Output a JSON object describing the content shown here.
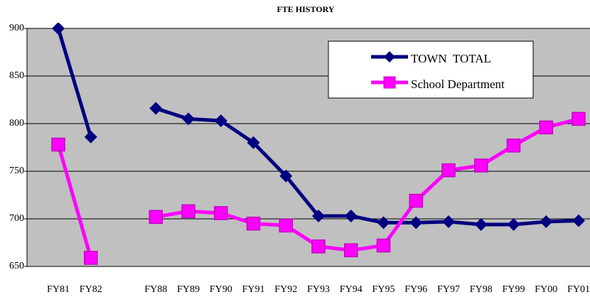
{
  "chart_data": {
    "type": "line",
    "title": "FTE HISTORY",
    "categories": [
      "FY81",
      "FY82",
      null,
      "FY88",
      "FY89",
      "FY90",
      "FY91",
      "FY92",
      "FY93",
      "FY94",
      "FY95",
      "FY96",
      "FY97",
      "FY98",
      "FY99",
      "FY00",
      "FY01"
    ],
    "series": [
      {
        "name": "TOWN  TOTAL",
        "color": "#000080",
        "marker": "diamond",
        "values": [
          900,
          786,
          null,
          816,
          805,
          803,
          780,
          745,
          703,
          703,
          696,
          696,
          697,
          694,
          694,
          697,
          698
        ]
      },
      {
        "name": "School Department",
        "color": "#ff00ff",
        "marker": "square",
        "values": [
          778,
          659,
          null,
          702,
          708,
          706,
          695,
          693,
          671,
          667,
          672,
          719,
          751,
          756,
          777,
          796,
          805
        ]
      }
    ],
    "ylim": [
      650,
      900
    ],
    "yticks": [
      650,
      700,
      750,
      800,
      850,
      900
    ],
    "grid": true,
    "legend": "top-right",
    "plot_background": "#c0c0c0"
  }
}
